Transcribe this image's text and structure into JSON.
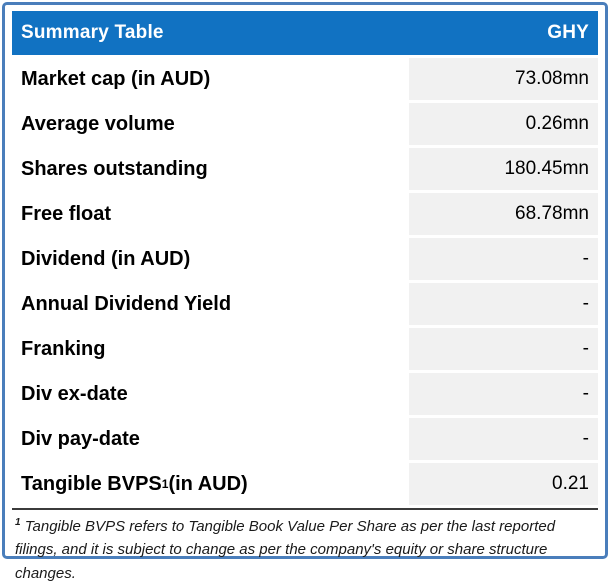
{
  "table": {
    "header": {
      "title": "Summary Table",
      "ticker": "GHY"
    },
    "rows": [
      {
        "label": "Market cap (in AUD)",
        "value": "73.08mn"
      },
      {
        "label": "Average volume",
        "value": "0.26mn"
      },
      {
        "label": "Shares outstanding",
        "value": "180.45mn"
      },
      {
        "label": "Free float",
        "value": "68.78mn"
      },
      {
        "label": "Dividend (in AUD)",
        "value": "-"
      },
      {
        "label": "Annual Dividend Yield",
        "value": "-"
      },
      {
        "label": "Franking",
        "value": "-"
      },
      {
        "label": "Div ex-date",
        "value": "-"
      },
      {
        "label": "Div pay-date",
        "value": "-"
      },
      {
        "label": "Tangible BVPS",
        "label_sup": "1",
        "label_suffix": " (in AUD)",
        "value": "0.21"
      }
    ],
    "footnote": {
      "sup": "1",
      "text": " Tangible BVPS refers to Tangible Book Value Per Share as per the last reported filings, and it is subject to change as per the company's equity or share structure changes."
    }
  },
  "colors": {
    "header_bg": "#1172c2",
    "header_text": "#ffffff",
    "frame_border": "#4a7ebb",
    "value_cell_bg": "#f1f1f1",
    "separator": "#3b3b3b",
    "label_text": "#000000"
  }
}
